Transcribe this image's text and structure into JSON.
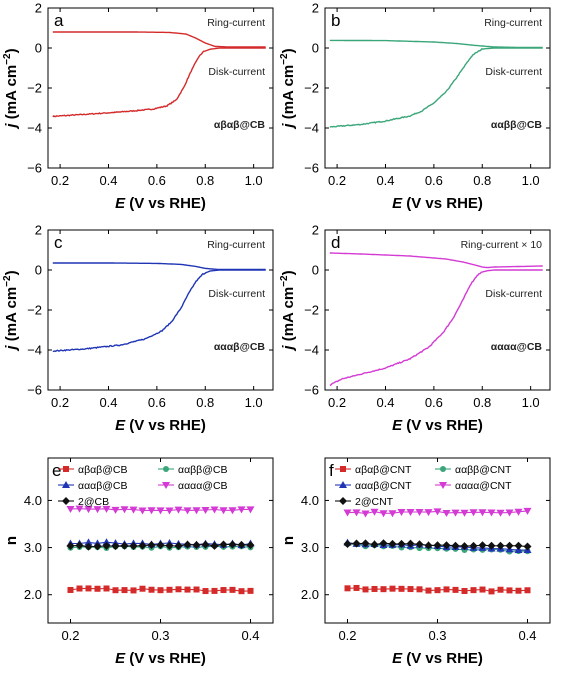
{
  "chart_data": [
    {
      "type": "line",
      "panel": "a",
      "xlabel": "E (V vs RHE)",
      "ylabel": "j (mA cm−2)",
      "xlim": [
        0.15,
        1.08
      ],
      "ylim": [
        -6,
        2
      ],
      "xticks": [
        "0.2",
        "0.4",
        "0.6",
        "0.8",
        "1.0"
      ],
      "yticks": [
        "2",
        "0",
        "−2",
        "−4",
        "−6"
      ],
      "color": "#d42a2a",
      "ring_label": "Ring-current",
      "disk_label": "Disk-current",
      "catalyst": "αβαβ@CB",
      "ring": {
        "x": [
          0.17,
          0.3,
          0.5,
          0.65,
          0.72,
          0.76,
          0.8,
          0.84,
          0.9,
          1.05
        ],
        "y": [
          0.8,
          0.8,
          0.8,
          0.78,
          0.7,
          0.5,
          0.25,
          0.08,
          0.05,
          0.05
        ]
      },
      "disk": {
        "x": [
          0.17,
          0.3,
          0.45,
          0.58,
          0.64,
          0.68,
          0.71,
          0.74,
          0.77,
          0.79,
          0.82,
          0.86,
          1.05
        ],
        "y": [
          -3.42,
          -3.32,
          -3.2,
          -3.06,
          -2.9,
          -2.6,
          -2.0,
          -1.2,
          -0.5,
          -0.2,
          -0.06,
          0.0,
          0.0
        ]
      }
    },
    {
      "type": "line",
      "panel": "b",
      "xlabel": "E (V vs RHE)",
      "ylabel": "j (mA cm−2)",
      "xlim": [
        0.15,
        1.08
      ],
      "ylim": [
        -6,
        2
      ],
      "xticks": [
        "0.2",
        "0.4",
        "0.6",
        "0.8",
        "1.0"
      ],
      "yticks": [
        "2",
        "0",
        "−2",
        "−4",
        "−6"
      ],
      "color": "#3aa67a",
      "ring_label": "Ring-current",
      "disk_label": "Disk-current",
      "catalyst": "ααββ@CB",
      "ring": {
        "x": [
          0.17,
          0.4,
          0.6,
          0.7,
          0.78,
          0.85,
          0.95,
          1.05
        ],
        "y": [
          0.38,
          0.37,
          0.3,
          0.22,
          0.12,
          0.05,
          0.03,
          0.03
        ]
      },
      "disk": {
        "x": [
          0.17,
          0.3,
          0.4,
          0.5,
          0.55,
          0.6,
          0.65,
          0.69,
          0.73,
          0.76,
          0.8,
          0.85,
          1.05
        ],
        "y": [
          -3.95,
          -3.82,
          -3.65,
          -3.4,
          -3.15,
          -2.75,
          -2.2,
          -1.55,
          -0.85,
          -0.35,
          -0.05,
          0.0,
          0.0
        ]
      }
    },
    {
      "type": "line",
      "panel": "c",
      "xlabel": "E (V vs RHE)",
      "ylabel": "j (mA cm−2)",
      "xlim": [
        0.15,
        1.08
      ],
      "ylim": [
        -6,
        2
      ],
      "xticks": [
        "0.2",
        "0.4",
        "0.6",
        "0.8",
        "1.0"
      ],
      "yticks": [
        "2",
        "0",
        "−2",
        "−4",
        "−6"
      ],
      "color": "#1f35b5",
      "ring_label": "Ring-current",
      "disk_label": "Disk-current",
      "catalyst": "αααβ@CB",
      "ring": {
        "x": [
          0.17,
          0.4,
          0.6,
          0.7,
          0.76,
          0.8,
          0.85,
          1.05
        ],
        "y": [
          0.35,
          0.35,
          0.33,
          0.28,
          0.18,
          0.08,
          0.03,
          0.03
        ]
      },
      "disk": {
        "x": [
          0.17,
          0.3,
          0.45,
          0.55,
          0.62,
          0.66,
          0.7,
          0.73,
          0.76,
          0.79,
          0.82,
          0.86,
          1.05
        ],
        "y": [
          -4.05,
          -3.95,
          -3.75,
          -3.45,
          -3.05,
          -2.6,
          -1.9,
          -1.2,
          -0.6,
          -0.2,
          -0.05,
          0.0,
          0.0
        ]
      }
    },
    {
      "type": "line",
      "panel": "d",
      "xlabel": "E (V vs RHE)",
      "ylabel": "j (mA cm−2)",
      "xlim": [
        0.15,
        1.08
      ],
      "ylim": [
        -6,
        2
      ],
      "xticks": [
        "0.2",
        "0.4",
        "0.6",
        "0.8",
        "1.0"
      ],
      "yticks": [
        "2",
        "0",
        "−2",
        "−4",
        "−6"
      ],
      "color": "#d43ad4",
      "ring_label": "Ring-current × 10",
      "disk_label": "Disk-current",
      "catalyst": "αααα@CB",
      "ring": {
        "x": [
          0.17,
          0.3,
          0.5,
          0.65,
          0.72,
          0.77,
          0.8,
          0.82,
          0.85,
          1.05
        ],
        "y": [
          0.85,
          0.8,
          0.7,
          0.55,
          0.4,
          0.25,
          0.15,
          0.12,
          0.15,
          0.2
        ]
      },
      "disk": {
        "x": [
          0.17,
          0.22,
          0.3,
          0.4,
          0.5,
          0.58,
          0.64,
          0.68,
          0.72,
          0.75,
          0.78,
          0.8,
          0.82,
          0.85,
          1.05
        ],
        "y": [
          -5.75,
          -5.45,
          -5.2,
          -4.9,
          -4.45,
          -3.85,
          -3.1,
          -2.4,
          -1.5,
          -0.75,
          -0.25,
          -0.1,
          -0.04,
          0.0,
          0.0
        ]
      }
    },
    {
      "type": "line",
      "panel": "e",
      "xlabel": "E (V vs RHE)",
      "ylabel": "n",
      "xlim": [
        0.175,
        0.425
      ],
      "ylim": [
        1.4,
        4.9
      ],
      "xticks": [
        "0.2",
        "0.3",
        "0.4"
      ],
      "yticks": [
        "2.0",
        "3.0",
        "4.0"
      ],
      "series": [
        {
          "name": "αβαβ@CB",
          "color": "#d42a2a",
          "marker": "square",
          "y_start": 2.12,
          "y_end": 2.09
        },
        {
          "name": "ααββ@CB",
          "color": "#3aa67a",
          "marker": "circle",
          "y_start": 3.0,
          "y_end": 3.02
        },
        {
          "name": "αααβ@CB",
          "color": "#1f35b5",
          "marker": "triangle",
          "y_start": 3.1,
          "y_end": 3.07
        },
        {
          "name": "αααα@CB",
          "color": "#d43ad4",
          "marker": "triangle-down",
          "y_start": 3.81,
          "y_end": 3.8
        },
        {
          "name": "2@CB",
          "color": "#111111",
          "marker": "diamond",
          "y_start": 3.03,
          "y_end": 3.05
        }
      ],
      "x_start": 0.2,
      "x_end": 0.4,
      "points": 21
    },
    {
      "type": "line",
      "panel": "f",
      "xlabel": "E (V vs RHE)",
      "ylabel": "n",
      "xlim": [
        0.175,
        0.425
      ],
      "ylim": [
        1.4,
        4.9
      ],
      "xticks": [
        "0.2",
        "0.3",
        "0.4"
      ],
      "yticks": [
        "2.0",
        "3.0",
        "4.0"
      ],
      "series": [
        {
          "name": "αβαβ@CNT",
          "color": "#d42a2a",
          "marker": "square",
          "y_start": 2.13,
          "y_end": 2.08
        },
        {
          "name": "ααββ@CNT",
          "color": "#3aa67a",
          "marker": "circle",
          "y_start": 3.06,
          "y_end": 2.92
        },
        {
          "name": "αααβ@CNT",
          "color": "#1f35b5",
          "marker": "triangle",
          "y_start": 3.1,
          "y_end": 2.96
        },
        {
          "name": "αααα@CNT",
          "color": "#d43ad4",
          "marker": "triangle-down",
          "y_start": 3.74,
          "y_end": 3.76
        },
        {
          "name": "2@CNT",
          "color": "#111111",
          "marker": "diamond",
          "y_start": 3.09,
          "y_end": 3.02
        }
      ],
      "x_start": 0.2,
      "x_end": 0.4,
      "points": 21
    }
  ]
}
